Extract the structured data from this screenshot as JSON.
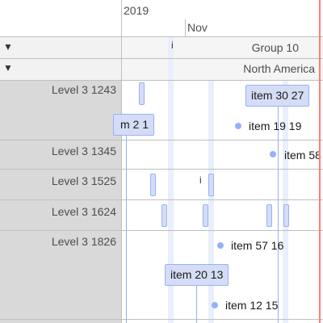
{
  "axis": {
    "major_label": "2019",
    "minor_label": "Nov"
  },
  "groups": [
    {
      "label": "Group 10",
      "toggle": "▼"
    },
    {
      "label": "North America",
      "toggle": "▼"
    },
    {
      "label": "Level 3 1243"
    },
    {
      "label": "Level 3 1345"
    },
    {
      "label": "Level 3 1525"
    },
    {
      "label": "Level 3 1624"
    },
    {
      "label": "Level 3 1826"
    }
  ],
  "items": {
    "item_30_27": "item 30 27",
    "item_2_1": "m 2 1",
    "item_19_19": "item 19 19",
    "item_58": "item 58",
    "item_57_16": "item 57 16",
    "item_20_13": "item 20 13",
    "item_12_15": "item 12 15",
    "tiny_marker": "i"
  },
  "colors": {
    "item_fill": "#d5ddf6",
    "item_border": "#97b0f8",
    "label_panel": "#d9d9d9",
    "nested_header": "#f2f2f2",
    "current_time": "#ff7f6e",
    "background_band": "#e9effc"
  }
}
